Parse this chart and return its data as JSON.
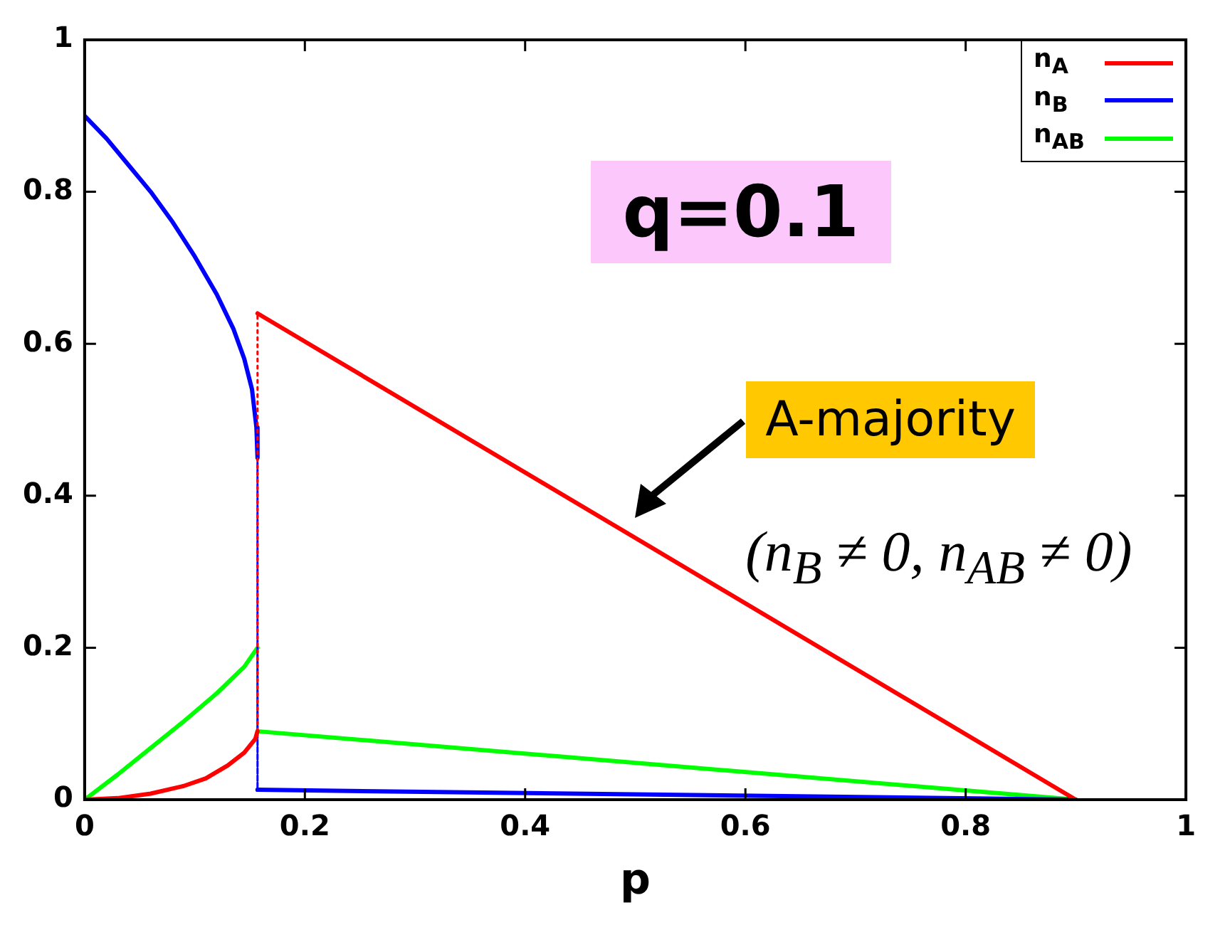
{
  "chart_data": {
    "type": "line",
    "xlabel": "p",
    "xlim": [
      0,
      1
    ],
    "ylim": [
      0,
      1
    ],
    "xticks": [
      0,
      0.2,
      0.4,
      0.6,
      0.8,
      1
    ],
    "yticks": [
      0,
      0.2,
      0.4,
      0.6,
      0.8,
      1
    ],
    "grid": false,
    "legend": "top right",
    "marker": "none",
    "line_style": "solid",
    "series": [
      {
        "name": "n$_{A}$",
        "color": "#ff0000",
        "x": [
          0,
          0.03,
          0.06,
          0.09,
          0.11,
          0.13,
          0.145,
          0.155,
          0.157,
          0.157,
          0.9
        ],
        "values": [
          0,
          0.002,
          0.008,
          0.018,
          0.028,
          0.045,
          0.062,
          0.08,
          0.09,
          0.64,
          0
        ]
      },
      {
        "name": "n$_{B}$",
        "color": "#0000ff",
        "x": [
          0,
          0.02,
          0.04,
          0.06,
          0.08,
          0.1,
          0.12,
          0.135,
          0.145,
          0.152,
          0.156,
          0.157,
          0.157,
          0.9
        ],
        "values": [
          0.9,
          0.87,
          0.835,
          0.8,
          0.76,
          0.715,
          0.665,
          0.62,
          0.58,
          0.54,
          0.49,
          0.45,
          0.013,
          0
        ]
      },
      {
        "name": "n$_{AB}$",
        "color": "#00ff00",
        "x": [
          0,
          0.03,
          0.06,
          0.09,
          0.12,
          0.145,
          0.157,
          0.157,
          0.9
        ],
        "values": [
          0,
          0.033,
          0.068,
          0.103,
          0.14,
          0.175,
          0.2,
          0.09,
          0
        ]
      }
    ],
    "annotations": [
      "q=0.1",
      "A-majority",
      "(n$_{B}$ ≠ 0, n$_{AB}$ ≠ 0)"
    ]
  }
}
